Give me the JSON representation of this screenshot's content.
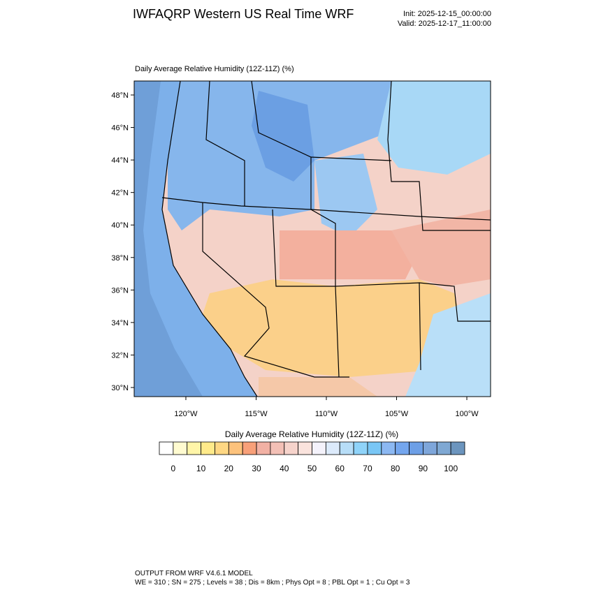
{
  "header": {
    "title": "IWFAQRP Western US Real Time WRF",
    "init": "Init: 2025-12-15_00:00:00",
    "valid": "Valid: 2025-12-17_11:00:00"
  },
  "map": {
    "subtitle": "Daily Average Relative Humidity (12Z-11Z)   (%)",
    "latlim": [
      29.44,
      48.86
    ],
    "lonlim": [
      -123.68,
      -98.31
    ],
    "latticks": [
      {
        "value": 30,
        "label": "30°N"
      },
      {
        "value": 32,
        "label": "32°N"
      },
      {
        "value": 34,
        "label": "34°N"
      },
      {
        "value": 36,
        "label": "36°N"
      },
      {
        "value": 38,
        "label": "38°N"
      },
      {
        "value": 40,
        "label": "40°N"
      },
      {
        "value": 42,
        "label": "42°N"
      },
      {
        "value": 44,
        "label": "44°N"
      },
      {
        "value": 46,
        "label": "46°N"
      },
      {
        "value": 48,
        "label": "48°N"
      }
    ],
    "lonticks": [
      {
        "value": -120,
        "label": "120°W"
      },
      {
        "value": -115,
        "label": "115°W"
      },
      {
        "value": -110,
        "label": "110°W"
      },
      {
        "value": -105,
        "label": "105°W"
      },
      {
        "value": -100,
        "label": "100°W"
      }
    ]
  },
  "colorbar": {
    "title": "Daily Average Relative Humidity (12Z-11Z)  (%)",
    "lim": [
      -5,
      105
    ],
    "ticks": [
      0,
      10,
      20,
      30,
      40,
      50,
      60,
      70,
      80,
      90,
      100
    ],
    "colors": [
      "#ffffff",
      "#fffbd0",
      "#fff5a8",
      "#ffea8a",
      "#fed783",
      "#fcc27c",
      "#f8a079",
      "#f2b1a4",
      "#f3c0b6",
      "#f6d3cb",
      "#fae3dd",
      "#f4f2fb",
      "#dceafb",
      "#b7ddf7",
      "#8fd3f9",
      "#79c6f5",
      "#8cb8f2",
      "#74a6ee",
      "#6d9fe6",
      "#7ea6da",
      "#7fa8d3",
      "#6c95be"
    ]
  },
  "footer": {
    "line1": "OUTPUT FROM WRF V4.6.1 MODEL",
    "line2": "WE = 310 ; SN = 275 ; Levels = 38 ; Dis = 8km ; Phys Opt = 8 ; PBL Opt = 1 ; Cu Opt = 3"
  }
}
